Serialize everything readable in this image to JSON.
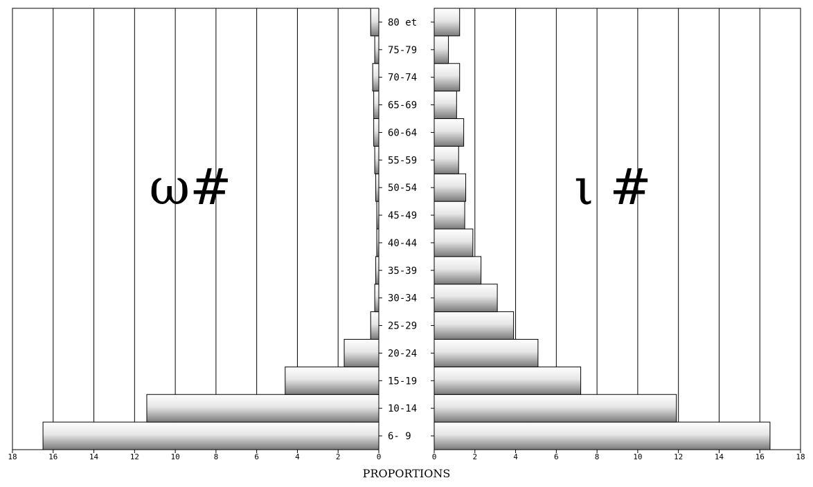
{
  "chart_data": {
    "type": "bar",
    "orientation": "horizontal",
    "layout": "population-pyramid",
    "categories": [
      "6- 9",
      "10-14",
      "15-19",
      "20-24",
      "25-29",
      "30-34",
      "35-39",
      "40-44",
      "45-49",
      "50-54",
      "55-59",
      "60-64",
      "65-69",
      "70-74",
      "75-79",
      "80 et"
    ],
    "series": [
      {
        "name": "ω#",
        "side": "left",
        "values": [
          16.5,
          11.4,
          4.6,
          1.7,
          0.4,
          0.2,
          0.15,
          0.1,
          0.1,
          0.15,
          0.2,
          0.25,
          0.25,
          0.3,
          0.2,
          0.4
        ]
      },
      {
        "name": "ι #",
        "side": "right",
        "values": [
          16.5,
          11.9,
          7.2,
          5.1,
          3.9,
          3.1,
          2.3,
          1.9,
          1.5,
          1.55,
          1.2,
          1.45,
          1.1,
          1.25,
          0.7,
          1.25
        ]
      }
    ],
    "xlim": [
      0,
      18
    ],
    "xticks": [
      "0",
      "2",
      "4",
      "6",
      "8",
      "10",
      "12",
      "14",
      "16",
      "18"
    ],
    "xlabel": "PROPORTIONS",
    "ylabel": "",
    "grid": true,
    "legend": "none"
  }
}
